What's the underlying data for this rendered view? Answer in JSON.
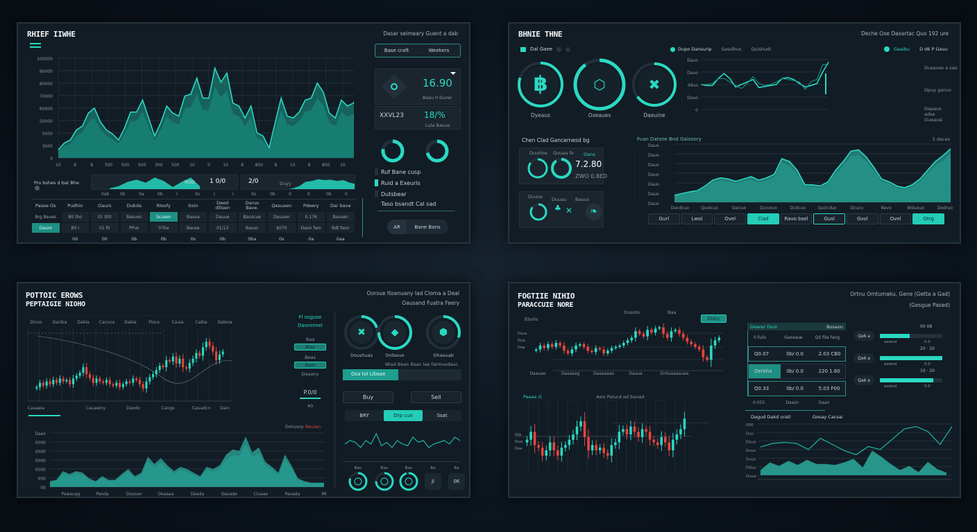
{
  "colors": {
    "accent": "#2ad9c2",
    "accent_fill": "#1f9e8f",
    "down": "#e8453c",
    "panel": "#121c25",
    "bg": "#0b131b"
  },
  "p1": {
    "title": "RHIEF IIWHE",
    "header": "Dasar seimeary Guent a dab",
    "menu_icon": "hamburger-icon",
    "segment": [
      "Base craft",
      "Weekers"
    ],
    "card1": {
      "value": "16.90",
      "sub": "Basu 0 Gurer"
    },
    "card2": {
      "label": "XXVL23",
      "value": "18/%",
      "sub": "Lula Bauus"
    },
    "donuts": [
      0.78,
      0.72
    ],
    "legend": [
      "Ruf Bane cusp",
      "Ruid a Exeuris",
      "Dutsbear"
    ],
    "note": "Taso bsandt Cal sad",
    "buttons": [
      "AR",
      "Bane Bans"
    ],
    "strip": {
      "label": "Pro bshes d bat Bhe",
      "v1": "1 0/0",
      "v1_label": "ROD",
      "v2": "2/0",
      "v2_label": "Duyy",
      "ticks": [
        "0ab",
        "0b",
        "0a",
        "0b",
        "I",
        "0s",
        "I",
        "I",
        "0s",
        "0b",
        "0",
        "0",
        "0b",
        "0"
      ]
    },
    "table": {
      "header": [
        "Pasee Os",
        "Pudhio",
        "Oaurs",
        "Dubda",
        "Rloofy",
        "Itoin",
        "Deed dllisen",
        "Daruo Bave.",
        "Qesuaen",
        "Pdeery",
        "Dar bave"
      ],
      "rows": [
        [
          "Brg Beues",
          "B0 tho",
          "01 t00",
          "Basuen",
          "Scusen",
          "Bauva",
          "Dauue",
          "Bauscue",
          "Dauuen",
          "0.176",
          "Bausen"
        ],
        [
          "Daure",
          "B0 I",
          "01 f0",
          "PPus",
          "07ba",
          "Bause",
          "01/13",
          "Bausn",
          "$070",
          "Daon fam",
          "Bdt faun"
        ],
        [
          "",
          "00",
          "00",
          "0b",
          "0b",
          "0s",
          "0b",
          "0ba",
          "0s",
          "0a",
          "0aa"
        ]
      ],
      "highlight": [
        [
          0,
          4
        ],
        [
          1,
          0
        ]
      ]
    }
  },
  "p2": {
    "title": "BHNIE THNE",
    "header": "Deche Oxe Dasartac Quo 192 ure",
    "legend_left": "Dal Gaee",
    "legend_mid": [
      "Dupo Dansurip",
      "Sasolbus",
      "Quishudi"
    ],
    "legend_right": [
      "Gaaibu",
      "D d6 P Gauu"
    ],
    "rings": [
      {
        "label": "Dyeaus",
        "value": 0.8,
        "icon": "bitcoin-icon",
        "glyph": "฿"
      },
      {
        "label": "Oxeaues",
        "value": 0.9,
        "icon": "hexagon-coin-icon",
        "glyph": "⬡"
      },
      {
        "label": "Daeuine",
        "value": 0.65,
        "icon": "ripple-x-icon",
        "glyph": "✖"
      }
    ],
    "side": [
      "Dusause a sao",
      "Dpuy ganus",
      "Dapaus adse Gueausi"
    ],
    "section": "Chen Clad Gancernesd bg",
    "cardA": {
      "labels": [
        "Duurloo",
        "Quuau fe"
      ],
      "tag": "Oans",
      "value": "7.2.80",
      "sub": "ZWO 0.8ED",
      "rings": [
        0.85,
        0.9
      ]
    },
    "cardB": {
      "labels": [
        "Duuus",
        "Duuau",
        "Bauus"
      ]
    },
    "area_title": "Fuan Datsne Bnd Gaiosery",
    "area_right": "5 daces",
    "area_x": [
      "Dacdcuo",
      "Quoicuo",
      "Oaciuo",
      "Quivouo",
      "Dcdcuo",
      "Qui/cduo",
      "Dcucu",
      "Bevo",
      "Wduouo",
      "Dodruo"
    ],
    "area_y": [
      "Dauo",
      "Dauo",
      "Dauo",
      "Dauo",
      "Dauo",
      "Dauo",
      "Dauo"
    ],
    "line_y": [
      "Dauo",
      "Dauo",
      "dduo",
      "Dauo",
      "0"
    ],
    "buttons": [
      "Gurl",
      "Lwol",
      "Ovel",
      "Ciad",
      "Ravo bsel",
      "Gusl",
      "Gvol",
      "Ovel",
      "Otrg"
    ],
    "buttons_on": [
      3,
      8
    ],
    "buttons_outline": [
      5
    ]
  },
  "p3": {
    "titles": [
      "POTTOIC EROWS",
      "PEPTAIGIE NIOHO"
    ],
    "header": [
      "Oorsue Itoanuany lad Cloma a Deal",
      "Oausand Fuatra Feery"
    ],
    "cols": [
      "Dicoo",
      "Dacbia",
      "Dabia",
      "Cacuna",
      "Dabia",
      "Pioca",
      "Cauia",
      "Cabia",
      "Daboia"
    ],
    "cx": [
      "Cauaeia",
      "Cauaeiny",
      "Daodo",
      "Cango",
      "Cauadcn",
      "Dain"
    ],
    "side": {
      "title": [
        "Fl osguse",
        "Daonnmel"
      ],
      "l1": "Baa",
      "b1": "Blaa",
      "l2": "Beas",
      "b2": "Boos",
      "l3": "Daaany",
      "val": "P.0/0",
      "val2": "40"
    },
    "area_legend": [
      "Dxtusoy",
      "Reulan"
    ],
    "area_y": [
      "Daeo",
      "0000",
      "0000",
      "0000",
      "0000",
      "000",
      "00"
    ],
    "area_x": [
      "Pswauag",
      "Paoda",
      "Dosoao",
      "Ooaaaa",
      "Deada",
      "Oauada",
      "Cluaao",
      "Paoada",
      "Ml"
    ],
    "rings": [
      {
        "label": "Doushuas",
        "value": 0.2,
        "icon": "ripple-x-icon",
        "glyph": "✖"
      },
      {
        "label": "Ordseuo",
        "value": 0.75,
        "icon": "ethereum-icon",
        "glyph": "◆"
      },
      {
        "label": "Ohaeuab",
        "value": 0.3,
        "icon": "shield-coin-icon",
        "glyph": "⬢"
      }
    ],
    "caption": "Wiad Bean Baac lae fatmusdauc",
    "progress": {
      "label": "Osa tol Libsae",
      "value": 0.47
    },
    "buy": "Buy",
    "sell": "Sell",
    "segment": [
      "BRY",
      "Drp cuo",
      "Ssat"
    ],
    "segment_active": 1,
    "mini": [
      {
        "label": "Bau",
        "value": 0.8
      },
      {
        "label": "Bau",
        "value": 0.75
      },
      {
        "label": "Bau",
        "value": 0.95
      },
      {
        "label": "Ba",
        "text": "Jl"
      },
      {
        "label": "Ba",
        "text": "0K"
      }
    ]
  },
  "p4": {
    "titles": [
      "FOGTIIE NIHIO",
      "PARACCUIE NORE"
    ],
    "header": [
      "Ortnu Omtumaku, Gene (Getta a Gad)",
      "(Gesgue Pased)"
    ],
    "c1": {
      "label": "Ebolis",
      "top": [
        "Dusoto",
        "Baa"
      ],
      "button": "Dtshy",
      "y": [
        "Dsus",
        "Dya",
        "Dsa"
      ],
      "x": [
        "Daauao",
        "Daaaaag",
        "Daaaaaao",
        "Daaua",
        "Drduaaaauaa"
      ]
    },
    "orders": {
      "title": "Dearer Fauii",
      "right": "Bosaon",
      "cols": [
        "0 fulis",
        "Gaosaue",
        "Q0 f0a fang"
      ],
      "rows": [
        [
          "Q0.07",
          "0b/ 0.0",
          "2.03 CB0"
        ],
        [
          "Derkha",
          "0b/ 0.0",
          "220 1.60"
        ],
        [
          "Q0.33",
          "0b/ 0.0",
          "5.03 F00"
        ]
      ],
      "foot": [
        "0.055",
        "Daasn",
        "Daan"
      ]
    },
    "bars": [
      {
        "pill": "Qa6 a",
        "top": "00  08",
        "sub": "aawnd",
        "sub2": "0.0",
        "value": 0.48
      },
      {
        "pill": "Qa6 a",
        "top": "20 · 20",
        "sub": "aawnd",
        "sub2": "0.0",
        "value": 1.0
      },
      {
        "pill": "Qa6 a",
        "top": "10 · 20",
        "sub": "aawnd",
        "sub2": "0.0",
        "value": 0.86
      }
    ],
    "c2": {
      "label": "Peaae G",
      "center": "Aeis Palucd ed banad",
      "y": [
        "Dla",
        "Dua",
        "Dsa"
      ]
    },
    "c3": {
      "tabs": [
        "Dagud Dakd uratl",
        "Gosay Cacsai"
      ],
      "y": [
        "000",
        "Duu",
        "Daua",
        "Duus",
        "Duus",
        "Dduu",
        "Duua"
      ]
    }
  },
  "chart_data": [
    {
      "type": "area",
      "values": [
        8,
        15,
        18,
        28,
        32,
        45,
        50,
        36,
        28,
        24,
        18,
        30,
        46,
        46,
        58,
        40,
        22,
        35,
        52,
        45,
        42,
        62,
        64,
        80,
        60,
        60,
        90,
        76,
        85,
        55,
        52,
        40,
        52,
        25,
        22,
        10,
        35,
        60,
        42,
        40,
        46,
        58,
        60,
        75,
        66,
        45,
        40,
        58,
        52,
        55,
        68
      ],
      "y_ticks": [
        "100000",
        "90000",
        "80000",
        "70000",
        "60000",
        "50000",
        "5000",
        "3000",
        "0"
      ],
      "x_ticks": [
        "10",
        "8",
        "8",
        "300",
        "500",
        "500",
        "300",
        "500",
        "10",
        "0",
        "10",
        "8",
        "800",
        "8",
        "10",
        "8",
        "800",
        "10",
        "800"
      ]
    },
    {
      "type": "area",
      "values": [
        5,
        10,
        20,
        25,
        18,
        30,
        22,
        8,
        20,
        30,
        10
      ],
      "note": "strip-1"
    },
    {
      "type": "area",
      "values": [
        2,
        5,
        10,
        20,
        22,
        26,
        24,
        25,
        22,
        24,
        18,
        15
      ]
    },
    {
      "type": "line",
      "series": [
        {
          "values": [
            50,
            48,
            48,
            62,
            72,
            62,
            45,
            50,
            55,
            60,
            44,
            46,
            48,
            50,
            62,
            64,
            60,
            52,
            45,
            48,
            52,
            75,
            95
          ]
        },
        {
          "values": [
            50,
            50,
            52,
            62,
            62,
            55,
            48,
            42,
            52,
            66,
            52,
            48,
            50,
            55,
            62,
            60,
            58,
            55,
            40,
            56,
            60,
            90,
            90
          ]
        }
      ]
    },
    {
      "type": "area",
      "values": [
        12,
        15,
        18,
        20,
        28,
        38,
        42,
        40,
        36,
        40,
        44,
        38,
        42,
        48,
        75,
        70,
        55,
        30,
        30,
        28,
        35,
        55,
        70,
        88,
        90,
        78,
        60,
        40,
        35,
        28,
        25,
        30,
        40,
        55,
        70,
        80,
        92
      ]
    },
    {
      "type": "candlestick",
      "closes": [
        30,
        32,
        38,
        34,
        40,
        36,
        42,
        38,
        44,
        40,
        42,
        36,
        44,
        48,
        52,
        60,
        50,
        45,
        38,
        44,
        40,
        38,
        42,
        36,
        34,
        38,
        32,
        36,
        40,
        38,
        44,
        42,
        36,
        30,
        40,
        46,
        50,
        56,
        62,
        60,
        70,
        68,
        75,
        65,
        72,
        60,
        58,
        66,
        72,
        80,
        76,
        88,
        96,
        90,
        82,
        70,
        78,
        82
      ]
    },
    {
      "type": "area",
      "values": [
        8,
        10,
        22,
        18,
        22,
        20,
        12,
        8,
        15,
        10,
        10,
        18,
        25,
        15,
        20,
        42,
        32,
        40,
        30,
        22,
        28,
        25,
        20,
        15,
        28,
        25,
        30,
        45,
        52,
        50,
        70,
        48,
        55,
        35,
        28,
        20,
        45,
        30,
        12,
        8,
        6,
        6,
        6
      ]
    },
    {
      "type": "line",
      "values": [
        50,
        60,
        55,
        40,
        60,
        50,
        80,
        45,
        55,
        40,
        60,
        50,
        45,
        70,
        55,
        60,
        40,
        50,
        55,
        60,
        50,
        70,
        60
      ]
    },
    {
      "type": "candlestick",
      "closes": [
        50,
        52,
        58,
        54,
        60,
        56,
        62,
        58,
        50,
        46,
        52,
        58,
        60,
        56,
        50,
        48,
        54,
        52,
        46,
        50,
        54,
        56,
        58,
        62,
        66,
        70,
        80,
        76,
        72,
        82,
        78,
        84,
        86,
        76,
        70,
        80,
        82,
        76,
        70,
        64,
        60,
        56,
        52,
        40,
        36,
        58,
        66,
        70
      ]
    },
    {
      "type": "candlestick",
      "closes": [
        50,
        52,
        58,
        48,
        46,
        40,
        44,
        50,
        44,
        40,
        46,
        48,
        52,
        56,
        62,
        66,
        54,
        44,
        48,
        44,
        46,
        42,
        40,
        48,
        50,
        58,
        60,
        56,
        62,
        58,
        54,
        60,
        58,
        52,
        50,
        48,
        54,
        50,
        44,
        52,
        56,
        60,
        68
      ]
    },
    {
      "type": "line_area",
      "line": [
        55,
        62,
        64,
        62,
        50,
        72,
        60,
        48,
        40,
        56,
        50,
        70,
        90,
        95,
        85,
        60,
        95
      ],
      "area": [
        10,
        25,
        18,
        28,
        20,
        30,
        22,
        22,
        20,
        25,
        32,
        15,
        48,
        36,
        22,
        10,
        18,
        6,
        26,
        12,
        5
      ]
    }
  ]
}
